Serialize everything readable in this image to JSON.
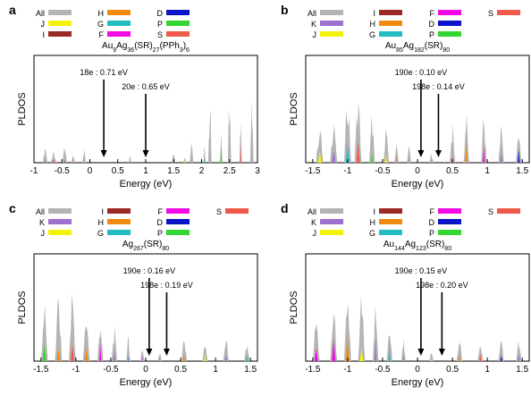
{
  "colors": {
    "All": "#b4b4b4",
    "I": "#9b2a26",
    "J": "#f5f20a",
    "K": "#9b70cf",
    "H": "#f28a12",
    "G": "#22bcc4",
    "F": "#f10ae6",
    "D": "#0a14c8",
    "P": "#33d631",
    "S": "#ef5a4a"
  },
  "chart_data": [
    {
      "panel": "a",
      "type": "area",
      "title": "Au₉Ag₃₆(SR)₂₇(PPh₃)₆",
      "title_parts": [
        [
          "Au",
          ""
        ],
        [
          "9",
          "sub"
        ],
        [
          "Ag",
          ""
        ],
        [
          "36",
          "sub"
        ],
        [
          "(SR)",
          ""
        ],
        [
          "27",
          "sub"
        ],
        [
          "(PPh",
          ""
        ],
        [
          "3",
          "sub"
        ],
        [
          ")",
          ""
        ],
        [
          "6",
          "sub"
        ]
      ],
      "xlabel": "Energy (eV)",
      "ylabel": "PLDOS",
      "xlim": [
        -1,
        3
      ],
      "xticks": [
        -1,
        -0.5,
        0,
        0.5,
        1,
        1.5,
        2,
        2.5,
        3
      ],
      "xtick_labels": [
        "-1",
        "-0.5",
        "0",
        "0.5",
        "1",
        "1.5",
        "2",
        "2.5",
        "3"
      ],
      "legend": [
        [
          "All",
          "H",
          "D"
        ],
        [
          "J",
          "G",
          "P"
        ],
        [
          "I",
          "F",
          "S"
        ]
      ],
      "annotations": [
        {
          "text": "18e : 0.71 eV",
          "x": 0.25
        },
        {
          "text": "20e : 0.65 eV",
          "x": 1.0
        }
      ],
      "bands": [
        {
          "center": -0.8,
          "width": 0.04,
          "height": 0.22
        },
        {
          "center": -0.65,
          "width": 0.05,
          "height": 0.12
        },
        {
          "center": -0.45,
          "width": 0.04,
          "height": 0.25
        },
        {
          "center": -0.3,
          "width": 0.03,
          "height": 0.12
        },
        {
          "center": -0.1,
          "width": 0.03,
          "height": 0.18
        },
        {
          "center": 0.72,
          "width": 0.02,
          "height": 0.1
        },
        {
          "center": 1.5,
          "width": 0.03,
          "height": 0.18
        },
        {
          "center": 1.7,
          "width": 0.02,
          "height": 0.1
        },
        {
          "center": 1.82,
          "width": 0.03,
          "height": 0.38
        },
        {
          "center": 2.05,
          "width": 0.02,
          "height": 0.2
        },
        {
          "center": 2.15,
          "width": 0.03,
          "height": 0.85
        },
        {
          "center": 2.35,
          "width": 0.02,
          "height": 0.5
        },
        {
          "center": 2.5,
          "width": 0.03,
          "height": 0.95
        },
        {
          "center": 2.7,
          "width": 0.02,
          "height": 0.6
        },
        {
          "center": 2.9,
          "width": 0.03,
          "height": 0.78
        }
      ]
    },
    {
      "panel": "b",
      "type": "area",
      "title": "Au₈₅Ag₁₈₂(SR)₈₀",
      "title_parts": [
        [
          "Au",
          ""
        ],
        [
          "85",
          "sub"
        ],
        [
          "Ag",
          ""
        ],
        [
          "182",
          "sub"
        ],
        [
          "(SR)",
          ""
        ],
        [
          "80",
          "sub"
        ]
      ],
      "xlabel": "Energy (eV)",
      "ylabel": "PLDOS",
      "xlim": [
        -1.6,
        1.6
      ],
      "xticks": [
        -1.5,
        -1,
        -0.5,
        0,
        0.5,
        1,
        1.5
      ],
      "xtick_labels": [
        "-1.5",
        "-1",
        "-0.5",
        "0",
        "0.5",
        "1",
        "1.5"
      ],
      "legend": [
        [
          "All",
          "I",
          "F",
          "S"
        ],
        [
          "K",
          "H",
          "D"
        ],
        [
          "J",
          "G",
          "P"
        ]
      ],
      "annotations": [
        {
          "text": "190e : 0.10 eV",
          "x": 0.05
        },
        {
          "text": "198e : 0.14 eV",
          "x": 0.3
        }
      ],
      "bands": [
        {
          "center": -1.4,
          "width": 0.05,
          "height": 0.5
        },
        {
          "center": -1.2,
          "width": 0.05,
          "height": 0.62
        },
        {
          "center": -1.0,
          "width": 0.05,
          "height": 0.92
        },
        {
          "center": -0.85,
          "width": 0.05,
          "height": 0.9
        },
        {
          "center": -0.65,
          "width": 0.04,
          "height": 0.6
        },
        {
          "center": -0.45,
          "width": 0.04,
          "height": 0.45
        },
        {
          "center": -0.3,
          "width": 0.03,
          "height": 0.3
        },
        {
          "center": -0.12,
          "width": 0.03,
          "height": 0.22
        },
        {
          "center": 0.2,
          "width": 0.03,
          "height": 0.12
        },
        {
          "center": 0.5,
          "width": 0.04,
          "height": 0.45
        },
        {
          "center": 0.7,
          "width": 0.04,
          "height": 0.6
        },
        {
          "center": 0.95,
          "width": 0.04,
          "height": 0.55
        },
        {
          "center": 1.2,
          "width": 0.04,
          "height": 0.5
        },
        {
          "center": 1.45,
          "width": 0.04,
          "height": 0.42
        }
      ]
    },
    {
      "panel": "c",
      "type": "area",
      "title": "Ag₂₆₇(SR)₈₀",
      "title_parts": [
        [
          "Ag",
          ""
        ],
        [
          "267",
          "sub"
        ],
        [
          "(SR)",
          ""
        ],
        [
          "80",
          "sub"
        ]
      ],
      "xlabel": "Energy (eV)",
      "ylabel": "PLDOS",
      "xlim": [
        -1.6,
        1.6
      ],
      "xticks": [
        -1.5,
        -1,
        -0.5,
        0,
        0.5,
        1,
        1.5
      ],
      "xtick_labels": [
        "-1.5",
        "-1",
        "-0.5",
        "0",
        "0.5",
        "1",
        "1.5"
      ],
      "legend": [
        [
          "All",
          "I",
          "F",
          "S"
        ],
        [
          "K",
          "H",
          "D"
        ],
        [
          "J",
          "G",
          "P"
        ]
      ],
      "annotations": [
        {
          "text": "190e : 0.16 eV",
          "x": 0.05
        },
        {
          "text": "198e : 0.19 eV",
          "x": 0.3
        }
      ],
      "bands": [
        {
          "center": -1.45,
          "width": 0.05,
          "height": 0.7
        },
        {
          "center": -1.25,
          "width": 0.05,
          "height": 0.82
        },
        {
          "center": -1.05,
          "width": 0.05,
          "height": 0.9
        },
        {
          "center": -0.85,
          "width": 0.05,
          "height": 0.6
        },
        {
          "center": -0.65,
          "width": 0.04,
          "height": 0.55
        },
        {
          "center": -0.45,
          "width": 0.04,
          "height": 0.4
        },
        {
          "center": -0.25,
          "width": 0.03,
          "height": 0.28
        },
        {
          "center": -0.05,
          "width": 0.03,
          "height": 0.18
        },
        {
          "center": 0.2,
          "width": 0.03,
          "height": 0.12
        },
        {
          "center": 0.55,
          "width": 0.04,
          "height": 0.28
        },
        {
          "center": 0.85,
          "width": 0.04,
          "height": 0.22
        },
        {
          "center": 1.15,
          "width": 0.04,
          "height": 0.3
        },
        {
          "center": 1.45,
          "width": 0.04,
          "height": 0.22
        }
      ]
    },
    {
      "panel": "d",
      "type": "area",
      "title": "Au₁₄₄Ag₁₂₃(SR)₈₀",
      "title_parts": [
        [
          "Au",
          ""
        ],
        [
          "144",
          "sub"
        ],
        [
          "Ag",
          ""
        ],
        [
          "123",
          "sub"
        ],
        [
          "(SR)",
          ""
        ],
        [
          "80",
          "sub"
        ]
      ],
      "xlabel": "Energy (eV)",
      "ylabel": "PLDOS",
      "xlim": [
        -1.6,
        1.6
      ],
      "xticks": [
        -1.5,
        -1,
        -0.5,
        0,
        0.5,
        1,
        1.5
      ],
      "xtick_labels": [
        "-1.5",
        "-1",
        "-0.5",
        "0",
        "0.5",
        "1",
        "1.5"
      ],
      "legend": [
        [
          "All",
          "I",
          "F",
          "S"
        ],
        [
          "K",
          "H",
          "D"
        ],
        [
          "J",
          "G",
          "P"
        ]
      ],
      "annotations": [
        {
          "text": "190e : 0.15 eV",
          "x": 0.05
        },
        {
          "text": "198e : 0.20 eV",
          "x": 0.35
        }
      ],
      "bands": [
        {
          "center": -1.45,
          "width": 0.05,
          "height": 0.55
        },
        {
          "center": -1.2,
          "width": 0.05,
          "height": 0.68
        },
        {
          "center": -1.0,
          "width": 0.05,
          "height": 0.85
        },
        {
          "center": -0.8,
          "width": 0.05,
          "height": 0.8
        },
        {
          "center": -0.6,
          "width": 0.04,
          "height": 0.7
        },
        {
          "center": -0.4,
          "width": 0.04,
          "height": 0.45
        },
        {
          "center": -0.2,
          "width": 0.03,
          "height": 0.3
        },
        {
          "center": 0.2,
          "width": 0.03,
          "height": 0.12
        },
        {
          "center": 0.6,
          "width": 0.04,
          "height": 0.35
        },
        {
          "center": 0.9,
          "width": 0.04,
          "height": 0.28
        },
        {
          "center": 1.2,
          "width": 0.04,
          "height": 0.3
        },
        {
          "center": 1.45,
          "width": 0.04,
          "height": 0.25
        }
      ]
    }
  ]
}
